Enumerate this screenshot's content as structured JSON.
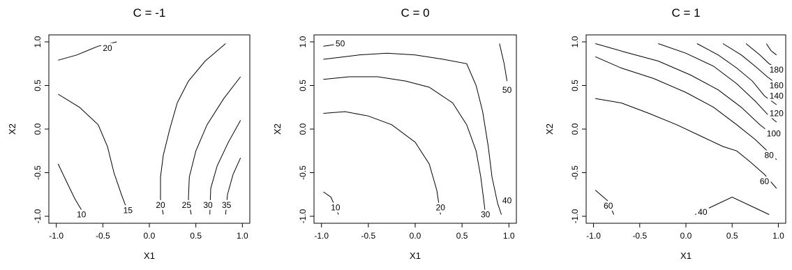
{
  "chart_data": [
    {
      "type": "contour",
      "title": "C = -1",
      "xlabel": "X1",
      "ylabel": "X2",
      "xlim": [
        -1,
        1
      ],
      "ylim": [
        -1,
        1
      ],
      "xticks": [
        "-1.0",
        "-0.5",
        "0.0",
        "0.5",
        "1.0"
      ],
      "yticks": [
        "-1.0",
        "-0.5",
        "0.0",
        "0.5",
        "1.0"
      ],
      "contours": [
        {
          "level": "20",
          "points": [
            [
              -0.98,
              0.79
            ],
            [
              -0.78,
              0.85
            ],
            [
              -0.55,
              0.95
            ],
            [
              -0.35,
              1.0
            ]
          ]
        },
        {
          "level": "10",
          "points": [
            [
              -0.98,
              -0.4
            ],
            [
              -0.9,
              -0.58
            ],
            [
              -0.8,
              -0.8
            ],
            [
              -0.7,
              -0.98
            ]
          ]
        },
        {
          "level": "15",
          "points": [
            [
              -0.98,
              0.4
            ],
            [
              -0.75,
              0.25
            ],
            [
              -0.55,
              0.05
            ],
            [
              -0.45,
              -0.2
            ],
            [
              -0.38,
              -0.5
            ],
            [
              -0.3,
              -0.75
            ],
            [
              -0.22,
              -0.98
            ]
          ]
        },
        {
          "level": "20",
          "points": [
            [
              0.82,
              0.98
            ],
            [
              0.6,
              0.78
            ],
            [
              0.42,
              0.55
            ],
            [
              0.3,
              0.3
            ],
            [
              0.22,
              0.0
            ],
            [
              0.15,
              -0.3
            ],
            [
              0.12,
              -0.55
            ],
            [
              0.12,
              -0.8
            ],
            [
              0.15,
              -0.98
            ]
          ]
        },
        {
          "level": "25",
          "points": [
            [
              0.98,
              0.6
            ],
            [
              0.8,
              0.35
            ],
            [
              0.62,
              0.05
            ],
            [
              0.5,
              -0.25
            ],
            [
              0.43,
              -0.55
            ],
            [
              0.42,
              -0.8
            ],
            [
              0.45,
              -0.98
            ]
          ]
        },
        {
          "level": "30",
          "points": [
            [
              0.98,
              0.1
            ],
            [
              0.85,
              -0.15
            ],
            [
              0.73,
              -0.42
            ],
            [
              0.66,
              -0.68
            ],
            [
              0.65,
              -0.98
            ]
          ]
        },
        {
          "level": "35",
          "points": [
            [
              0.98,
              -0.33
            ],
            [
              0.9,
              -0.52
            ],
            [
              0.84,
              -0.75
            ],
            [
              0.82,
              -0.98
            ]
          ]
        }
      ],
      "labels": [
        {
          "text": "20",
          "x": -0.45,
          "y": 0.93
        },
        {
          "text": "10",
          "x": -0.73,
          "y": -0.98
        },
        {
          "text": "15",
          "x": -0.23,
          "y": -0.93
        },
        {
          "text": "20",
          "x": 0.12,
          "y": -0.87
        },
        {
          "text": "25",
          "x": 0.4,
          "y": -0.87
        },
        {
          "text": "30",
          "x": 0.63,
          "y": -0.87
        },
        {
          "text": "35",
          "x": 0.83,
          "y": -0.87
        }
      ]
    },
    {
      "type": "contour",
      "title": "C = 0",
      "xlabel": "X1",
      "ylabel": "X2",
      "xlim": [
        -1,
        1
      ],
      "ylim": [
        -1,
        1
      ],
      "xticks": [
        "-1.0",
        "-0.5",
        "0.0",
        "0.5",
        "1.0"
      ],
      "yticks": [
        "-1.0",
        "-0.5",
        "0.0",
        "0.5",
        "1.0"
      ],
      "contours": [
        {
          "level": "50",
          "points": [
            [
              -0.98,
              0.95
            ],
            [
              -0.85,
              0.97
            ],
            [
              -0.78,
              0.98
            ]
          ]
        },
        {
          "level": "",
          "points": [
            [
              -0.98,
              0.8
            ],
            [
              -0.6,
              0.85
            ],
            [
              -0.3,
              0.87
            ],
            [
              0.0,
              0.85
            ],
            [
              0.3,
              0.8
            ],
            [
              0.55,
              0.75
            ],
            [
              0.65,
              0.5
            ],
            [
              0.72,
              0.2
            ],
            [
              0.78,
              -0.2
            ],
            [
              0.82,
              -0.55
            ],
            [
              0.88,
              -0.85
            ],
            [
              0.92,
              -0.98
            ]
          ]
        },
        {
          "level": "50",
          "points": [
            [
              0.9,
              0.98
            ],
            [
              0.95,
              0.75
            ],
            [
              0.98,
              0.55
            ]
          ]
        },
        {
          "level": "",
          "points": [
            [
              -0.98,
              0.57
            ],
            [
              -0.7,
              0.6
            ],
            [
              -0.4,
              0.6
            ],
            [
              -0.1,
              0.55
            ],
            [
              0.15,
              0.48
            ],
            [
              0.4,
              0.3
            ],
            [
              0.55,
              0.05
            ],
            [
              0.65,
              -0.25
            ],
            [
              0.7,
              -0.55
            ],
            [
              0.73,
              -0.8
            ],
            [
              0.75,
              -0.98
            ]
          ]
        },
        {
          "level": "",
          "points": [
            [
              -0.98,
              0.18
            ],
            [
              -0.75,
              0.2
            ],
            [
              -0.5,
              0.15
            ],
            [
              -0.25,
              0.05
            ],
            [
              0.0,
              -0.15
            ],
            [
              0.15,
              -0.4
            ],
            [
              0.23,
              -0.7
            ],
            [
              0.27,
              -0.98
            ]
          ]
        },
        {
          "level": "10",
          "points": [
            [
              -0.98,
              -0.72
            ],
            [
              -0.9,
              -0.78
            ],
            [
              -0.83,
              -0.95
            ],
            [
              -0.82,
              -0.98
            ]
          ]
        }
      ],
      "labels": [
        {
          "text": "50",
          "x": -0.8,
          "y": 0.98
        },
        {
          "text": "50",
          "x": 0.98,
          "y": 0.45
        },
        {
          "text": "40",
          "x": 0.98,
          "y": -0.82
        },
        {
          "text": "30",
          "x": 0.75,
          "y": -0.98
        },
        {
          "text": "20",
          "x": 0.27,
          "y": -0.9
        },
        {
          "text": "10",
          "x": -0.85,
          "y": -0.9
        }
      ]
    },
    {
      "type": "contour",
      "title": "C = 1",
      "xlabel": "X1",
      "ylabel": "X2",
      "xlim": [
        -1,
        1
      ],
      "ylim": [
        -1,
        1
      ],
      "xticks": [
        "-1.0",
        "-0.5",
        "0.0",
        "0.5",
        "1.0"
      ],
      "yticks": [
        "-1.0",
        "-0.5",
        "0.0",
        "0.5",
        "1.0"
      ],
      "contours": [
        {
          "level": "",
          "points": [
            [
              -0.98,
              0.35
            ],
            [
              -0.7,
              0.3
            ],
            [
              -0.4,
              0.18
            ],
            [
              -0.1,
              0.05
            ],
            [
              0.2,
              -0.1
            ],
            [
              0.4,
              -0.2
            ],
            [
              0.55,
              -0.25
            ],
            [
              0.7,
              -0.38
            ],
            [
              0.85,
              -0.52
            ],
            [
              0.98,
              -0.68
            ]
          ]
        },
        {
          "level": "",
          "points": [
            [
              -0.98,
              0.83
            ],
            [
              -0.7,
              0.7
            ],
            [
              -0.35,
              0.58
            ],
            [
              0.0,
              0.42
            ],
            [
              0.3,
              0.25
            ],
            [
              0.55,
              0.05
            ],
            [
              0.75,
              -0.12
            ],
            [
              0.88,
              -0.25
            ],
            [
              0.98,
              -0.35
            ]
          ]
        },
        {
          "level": "",
          "points": [
            [
              -0.98,
              0.98
            ],
            [
              -0.65,
              0.88
            ],
            [
              -0.3,
              0.78
            ],
            [
              0.05,
              0.62
            ],
            [
              0.35,
              0.45
            ],
            [
              0.6,
              0.25
            ],
            [
              0.8,
              0.05
            ],
            [
              0.98,
              -0.1
            ]
          ]
        },
        {
          "level": "",
          "points": [
            [
              -0.3,
              0.98
            ],
            [
              0.0,
              0.87
            ],
            [
              0.3,
              0.72
            ],
            [
              0.55,
              0.52
            ],
            [
              0.75,
              0.32
            ],
            [
              0.9,
              0.15
            ],
            [
              0.98,
              0.08
            ]
          ]
        },
        {
          "level": "",
          "points": [
            [
              0.12,
              0.98
            ],
            [
              0.35,
              0.85
            ],
            [
              0.55,
              0.7
            ],
            [
              0.72,
              0.55
            ],
            [
              0.85,
              0.38
            ],
            [
              0.98,
              0.28
            ]
          ]
        },
        {
          "level": "",
          "points": [
            [
              0.4,
              0.98
            ],
            [
              0.6,
              0.85
            ],
            [
              0.75,
              0.72
            ],
            [
              0.88,
              0.6
            ],
            [
              0.98,
              0.52
            ]
          ]
        },
        {
          "level": "",
          "points": [
            [
              0.65,
              0.98
            ],
            [
              0.8,
              0.85
            ],
            [
              0.9,
              0.75
            ],
            [
              0.98,
              0.7
            ]
          ]
        },
        {
          "level": "",
          "points": [
            [
              0.87,
              0.98
            ],
            [
              0.92,
              0.9
            ],
            [
              0.98,
              0.85
            ]
          ]
        },
        {
          "level": "60",
          "points": [
            [
              -0.98,
              -0.7
            ],
            [
              -0.85,
              -0.82
            ],
            [
              -0.78,
              -0.98
            ]
          ]
        },
        {
          "level": "40",
          "points": [
            [
              0.1,
              -0.98
            ],
            [
              0.3,
              -0.88
            ],
            [
              0.5,
              -0.78
            ],
            [
              0.7,
              -0.88
            ],
            [
              0.9,
              -0.98
            ]
          ]
        }
      ],
      "labels": [
        {
          "text": "180",
          "x": 0.98,
          "y": 0.68
        },
        {
          "text": "160",
          "x": 0.98,
          "y": 0.5
        },
        {
          "text": "140",
          "x": 0.98,
          "y": 0.38
        },
        {
          "text": "120",
          "x": 0.98,
          "y": 0.18
        },
        {
          "text": "100",
          "x": 0.95,
          "y": -0.05
        },
        {
          "text": "80",
          "x": 0.9,
          "y": -0.3
        },
        {
          "text": "60",
          "x": 0.85,
          "y": -0.6
        },
        {
          "text": "60",
          "x": -0.84,
          "y": -0.88
        },
        {
          "text": "40",
          "x": 0.18,
          "y": -0.95
        }
      ]
    }
  ]
}
